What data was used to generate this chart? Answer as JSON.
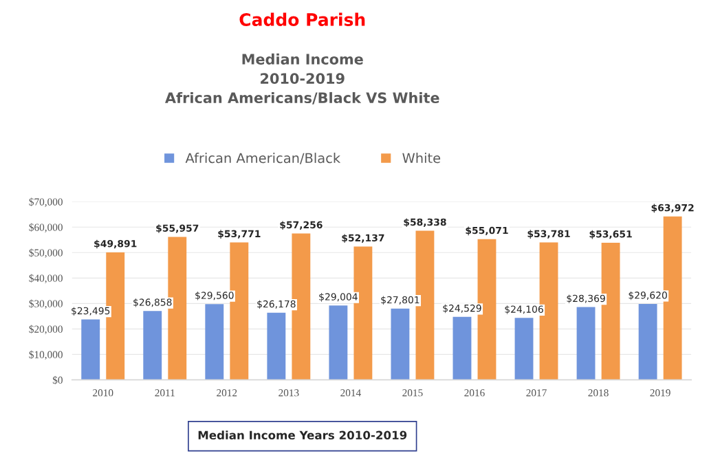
{
  "chart_data": {
    "type": "bar",
    "title": "Caddo Parish",
    "subtitle": "Median Income\n2010-2019\nAfrican Americans/Black VS White",
    "xlabel": "Median Income Years 2010-2019",
    "categories": [
      "2010",
      "2011",
      "2012",
      "2013",
      "2014",
      "2015",
      "2016",
      "2017",
      "2018",
      "2019"
    ],
    "series": [
      {
        "name": "African American/Black",
        "color": "#6f94dc",
        "values": [
          23495,
          26858,
          29560,
          26178,
          29004,
          27801,
          24529,
          24106,
          28369,
          29620
        ],
        "value_labels": [
          "$23,495",
          "$26,858",
          "$29,560",
          "$26,178",
          "$29,004",
          "$27,801",
          "$24,529",
          "$24,106",
          "$28,369",
          "$29,620"
        ]
      },
      {
        "name": "White",
        "color": "#f39a4a",
        "values": [
          49891,
          55957,
          53771,
          57256,
          52137,
          58338,
          55071,
          53781,
          53651,
          63972
        ],
        "value_labels": [
          "$49,891",
          "$55,957",
          "$53,771",
          "$57,256",
          "$52,137",
          "$58,338",
          "$55,071",
          "$53,781",
          "$53,651",
          "$63,972"
        ]
      }
    ],
    "ylim": [
      0,
      70000
    ],
    "yticks": [
      {
        "value": 0,
        "label": "$0"
      },
      {
        "value": 10000,
        "label": "$10,000"
      },
      {
        "value": 20000,
        "label": "$20,000"
      },
      {
        "value": 30000,
        "label": "$30,000"
      },
      {
        "value": 40000,
        "label": "$40,000"
      },
      {
        "value": 50000,
        "label": "$50,000"
      },
      {
        "value": 60000,
        "label": "$60,000"
      },
      {
        "value": 70000,
        "label": "$70,000"
      }
    ],
    "grid": "y",
    "legend": "top"
  }
}
